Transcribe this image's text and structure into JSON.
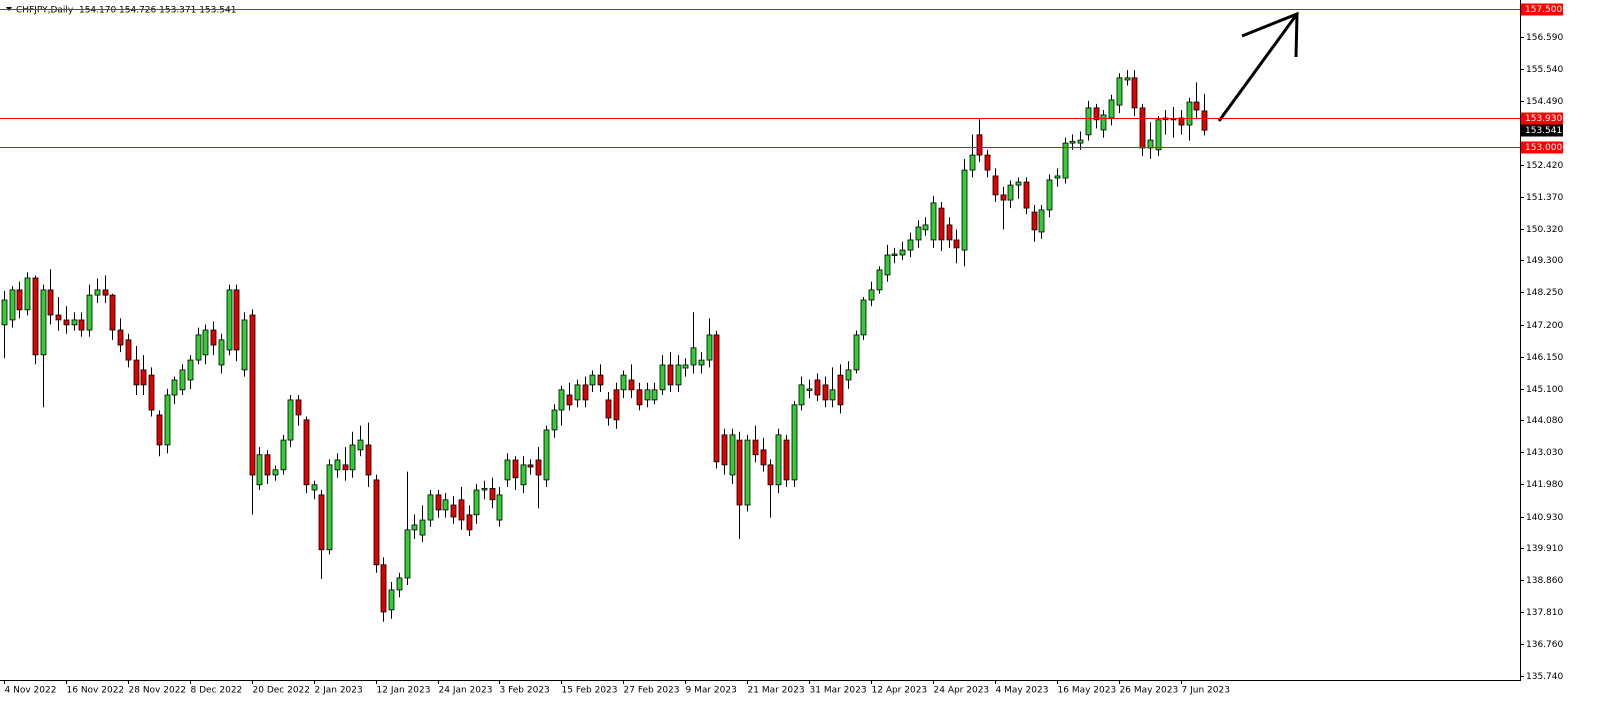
{
  "chart_data": {
    "type": "candlestick",
    "header": "CHFJPY,Daily  154.170 154.726 153.371 153.541",
    "x": [
      "4 Nov 2022",
      null,
      null,
      null,
      null,
      null,
      null,
      null,
      "16 Nov 2022",
      null,
      null,
      null,
      null,
      null,
      null,
      null,
      "28 Nov 2022",
      null,
      null,
      null,
      null,
      null,
      null,
      null,
      "8 Dec 2022",
      null,
      null,
      null,
      null,
      null,
      null,
      null,
      "20 Dec 2022",
      null,
      null,
      null,
      null,
      null,
      null,
      null,
      "2 Jan 2023",
      null,
      null,
      null,
      null,
      null,
      null,
      null,
      "12 Jan 2023",
      null,
      null,
      null,
      null,
      null,
      null,
      null,
      "24 Jan 2023",
      null,
      null,
      null,
      null,
      null,
      null,
      null,
      "3 Feb 2023",
      null,
      null,
      null,
      null,
      null,
      null,
      null,
      "15 Feb 2023",
      null,
      null,
      null,
      null,
      null,
      null,
      null,
      "27 Feb 2023",
      null,
      null,
      null,
      null,
      null,
      null,
      null,
      "9 Mar 2023",
      null,
      null,
      null,
      null,
      null,
      null,
      null,
      "21 Mar 2023",
      null,
      null,
      null,
      null,
      null,
      null,
      null,
      "31 Mar 2023",
      null,
      null,
      null,
      null,
      null,
      null,
      null,
      "12 Apr 2023",
      null,
      null,
      null,
      null,
      null,
      null,
      null,
      "24 Apr 2023",
      null,
      null,
      null,
      null,
      null,
      null,
      null,
      "4 May 2023",
      null,
      null,
      null,
      null,
      null,
      null,
      null,
      "16 May 2023",
      null,
      null,
      null,
      null,
      null,
      null,
      null,
      "26 May 2023",
      null,
      null,
      null,
      null,
      null,
      null,
      null,
      "7 Jun 2023",
      null,
      null,
      null
    ],
    "ohlc": [
      [
        147.19,
        148.3,
        146.1,
        148.0
      ],
      [
        147.35,
        148.45,
        147.1,
        148.33
      ],
      [
        148.33,
        148.6,
        147.4,
        147.68
      ],
      [
        147.68,
        148.9,
        147.5,
        148.72
      ],
      [
        148.72,
        148.8,
        145.9,
        146.21
      ],
      [
        146.21,
        148.5,
        144.5,
        148.33
      ],
      [
        148.33,
        149.0,
        147.2,
        147.51
      ],
      [
        147.51,
        148.1,
        147.0,
        147.35
      ],
      [
        147.35,
        147.8,
        146.9,
        147.19
      ],
      [
        147.19,
        147.6,
        147.0,
        147.35
      ],
      [
        147.35,
        147.6,
        146.8,
        147.02
      ],
      [
        147.02,
        148.5,
        146.8,
        148.16
      ],
      [
        148.16,
        148.7,
        147.9,
        148.33
      ],
      [
        148.33,
        148.8,
        147.9,
        148.16
      ],
      [
        148.16,
        148.2,
        146.7,
        147.02
      ],
      [
        147.02,
        147.4,
        146.3,
        146.53
      ],
      [
        146.7,
        146.9,
        145.8,
        146.04
      ],
      [
        146.04,
        146.5,
        144.9,
        145.23
      ],
      [
        145.72,
        146.2,
        144.9,
        145.23
      ],
      [
        145.55,
        145.8,
        144.2,
        144.41
      ],
      [
        144.25,
        144.4,
        142.9,
        143.27
      ],
      [
        143.27,
        145.1,
        143.0,
        144.9
      ],
      [
        144.9,
        145.5,
        144.6,
        145.39
      ],
      [
        145.07,
        145.9,
        144.9,
        145.72
      ],
      [
        145.39,
        146.2,
        145.1,
        146.04
      ],
      [
        146.04,
        147.1,
        145.9,
        146.86
      ],
      [
        146.21,
        147.2,
        145.9,
        147.02
      ],
      [
        147.02,
        147.3,
        146.2,
        146.53
      ],
      [
        145.88,
        146.9,
        145.6,
        146.7
      ],
      [
        146.37,
        148.5,
        146.2,
        148.33
      ],
      [
        148.33,
        148.5,
        146.0,
        146.37
      ],
      [
        145.72,
        147.6,
        145.5,
        147.35
      ],
      [
        147.51,
        147.7,
        141.0,
        142.29
      ],
      [
        141.97,
        143.2,
        141.8,
        142.95
      ],
      [
        142.95,
        143.1,
        142.0,
        142.29
      ],
      [
        142.29,
        142.6,
        142.1,
        142.46
      ],
      [
        142.46,
        143.6,
        142.3,
        143.43
      ],
      [
        143.43,
        144.9,
        143.2,
        144.74
      ],
      [
        144.74,
        144.9,
        143.9,
        144.25
      ],
      [
        144.09,
        144.2,
        141.7,
        141.97
      ],
      [
        141.8,
        142.1,
        141.5,
        141.97
      ],
      [
        141.64,
        141.8,
        138.9,
        139.85
      ],
      [
        139.85,
        142.8,
        139.7,
        142.62
      ],
      [
        142.46,
        143.0,
        142.2,
        142.78
      ],
      [
        142.62,
        143.2,
        142.1,
        142.46
      ],
      [
        142.46,
        143.7,
        142.2,
        143.27
      ],
      [
        143.11,
        143.9,
        142.9,
        143.43
      ],
      [
        143.27,
        144.0,
        141.9,
        142.29
      ],
      [
        142.13,
        142.3,
        139.1,
        139.36
      ],
      [
        139.36,
        139.6,
        137.5,
        137.82
      ],
      [
        137.89,
        138.8,
        137.6,
        138.54
      ],
      [
        138.54,
        139.1,
        138.3,
        138.93
      ],
      [
        138.93,
        142.4,
        138.7,
        140.5
      ],
      [
        140.5,
        141.0,
        140.2,
        140.66
      ],
      [
        140.33,
        141.3,
        140.1,
        140.82
      ],
      [
        140.82,
        141.8,
        140.6,
        141.64
      ],
      [
        141.64,
        141.8,
        140.9,
        141.15
      ],
      [
        141.15,
        141.7,
        140.9,
        141.48
      ],
      [
        141.31,
        141.6,
        140.7,
        140.92
      ],
      [
        141.48,
        141.9,
        140.5,
        140.82
      ],
      [
        140.99,
        141.3,
        140.3,
        140.5
      ],
      [
        140.99,
        142.0,
        140.7,
        141.8
      ],
      [
        141.8,
        142.1,
        141.5,
        141.85
      ],
      [
        141.85,
        142.2,
        141.2,
        141.48
      ],
      [
        140.82,
        141.9,
        140.6,
        141.64
      ],
      [
        142.13,
        143.0,
        141.9,
        142.78
      ],
      [
        142.78,
        142.9,
        141.8,
        142.2
      ],
      [
        141.97,
        142.9,
        141.7,
        142.62
      ],
      [
        142.62,
        142.8,
        142.3,
        142.55
      ],
      [
        142.78,
        143.2,
        141.2,
        142.29
      ],
      [
        142.13,
        143.9,
        141.9,
        143.76
      ],
      [
        143.76,
        144.6,
        143.5,
        144.41
      ],
      [
        144.41,
        145.2,
        143.9,
        145.07
      ],
      [
        144.9,
        145.3,
        144.4,
        144.58
      ],
      [
        144.74,
        145.4,
        144.5,
        145.23
      ],
      [
        145.23,
        145.5,
        144.5,
        144.74
      ],
      [
        145.23,
        145.7,
        145.0,
        145.55
      ],
      [
        145.55,
        145.9,
        145.0,
        145.23
      ],
      [
        144.74,
        145.0,
        143.9,
        144.15
      ],
      [
        145.07,
        145.3,
        143.8,
        144.09
      ],
      [
        145.07,
        145.7,
        144.8,
        145.55
      ],
      [
        145.39,
        145.9,
        144.8,
        145.07
      ],
      [
        145.07,
        145.3,
        144.4,
        144.58
      ],
      [
        144.74,
        145.3,
        144.5,
        145.07
      ],
      [
        144.74,
        145.3,
        144.6,
        145.07
      ],
      [
        145.07,
        146.2,
        144.9,
        145.88
      ],
      [
        145.88,
        146.3,
        145.0,
        145.23
      ],
      [
        145.23,
        146.2,
        145.0,
        145.88
      ],
      [
        145.78,
        146.1,
        145.5,
        145.88
      ],
      [
        145.88,
        147.6,
        145.6,
        146.44
      ],
      [
        145.88,
        146.3,
        145.6,
        146.04
      ],
      [
        146.04,
        147.4,
        145.8,
        146.86
      ],
      [
        146.86,
        147.0,
        142.5,
        142.72
      ],
      [
        143.6,
        143.8,
        142.3,
        142.62
      ],
      [
        142.29,
        143.8,
        142.0,
        143.6
      ],
      [
        143.43,
        143.7,
        140.2,
        141.31
      ],
      [
        141.31,
        143.6,
        141.1,
        143.43
      ],
      [
        143.43,
        143.9,
        142.7,
        142.95
      ],
      [
        143.11,
        143.5,
        142.4,
        142.62
      ],
      [
        142.62,
        142.8,
        140.9,
        141.97
      ],
      [
        141.97,
        143.8,
        141.7,
        143.6
      ],
      [
        143.43,
        143.6,
        141.9,
        142.13
      ],
      [
        142.13,
        144.7,
        141.9,
        144.58
      ],
      [
        144.58,
        145.5,
        144.4,
        145.23
      ],
      [
        145.05,
        145.4,
        144.8,
        145.1
      ],
      [
        145.39,
        145.6,
        144.7,
        144.9
      ],
      [
        145.23,
        145.5,
        144.5,
        144.74
      ],
      [
        144.74,
        145.8,
        144.5,
        145.07
      ],
      [
        145.55,
        145.9,
        144.3,
        144.58
      ],
      [
        145.39,
        146.0,
        145.1,
        145.72
      ],
      [
        145.72,
        147.0,
        145.6,
        146.86
      ],
      [
        146.86,
        148.1,
        146.7,
        148.0
      ],
      [
        148.0,
        148.6,
        147.8,
        148.33
      ],
      [
        148.33,
        149.1,
        148.2,
        148.98
      ],
      [
        148.82,
        149.8,
        148.6,
        149.47
      ],
      [
        149.45,
        149.7,
        149.2,
        149.5
      ],
      [
        149.47,
        149.9,
        149.3,
        149.63
      ],
      [
        149.63,
        150.2,
        149.4,
        149.96
      ],
      [
        149.96,
        150.6,
        149.7,
        150.38
      ],
      [
        150.29,
        150.7,
        150.1,
        150.45
      ],
      [
        149.96,
        151.4,
        149.7,
        151.17
      ],
      [
        151.0,
        151.2,
        149.6,
        149.96
      ],
      [
        150.45,
        150.7,
        149.7,
        149.96
      ],
      [
        149.96,
        150.3,
        149.2,
        149.7
      ],
      [
        149.63,
        152.6,
        149.1,
        152.24
      ],
      [
        152.24,
        153.4,
        152.0,
        152.73
      ],
      [
        153.39,
        153.9,
        152.5,
        152.73
      ],
      [
        152.73,
        152.9,
        152.0,
        152.24
      ],
      [
        152.05,
        152.3,
        151.2,
        151.43
      ],
      [
        151.43,
        151.7,
        150.3,
        151.26
      ],
      [
        151.26,
        151.9,
        151.0,
        151.75
      ],
      [
        151.75,
        152.0,
        151.3,
        151.85
      ],
      [
        151.85,
        152.0,
        150.8,
        151.0
      ],
      [
        150.87,
        151.1,
        149.9,
        150.29
      ],
      [
        150.22,
        151.1,
        150.0,
        150.94
      ],
      [
        150.94,
        152.1,
        150.7,
        151.92
      ],
      [
        151.98,
        152.3,
        151.7,
        152.05
      ],
      [
        151.98,
        153.3,
        151.8,
        153.12
      ],
      [
        153.12,
        153.4,
        152.9,
        153.18
      ],
      [
        153.12,
        153.5,
        152.9,
        153.22
      ],
      [
        153.39,
        154.5,
        153.2,
        154.27
      ],
      [
        154.27,
        154.4,
        153.6,
        153.88
      ],
      [
        153.55,
        154.2,
        153.3,
        154.04
      ],
      [
        153.94,
        154.7,
        153.7,
        154.53
      ],
      [
        154.36,
        155.4,
        154.1,
        155.25
      ],
      [
        155.18,
        155.5,
        155.0,
        155.25
      ],
      [
        155.25,
        155.5,
        154.0,
        154.27
      ],
      [
        154.27,
        154.4,
        152.7,
        152.96
      ],
      [
        152.96,
        153.8,
        152.6,
        153.22
      ],
      [
        152.9,
        154.0,
        152.7,
        153.88
      ],
      [
        153.94,
        154.2,
        153.4,
        153.88
      ],
      [
        153.88,
        154.3,
        153.3,
        153.91
      ],
      [
        153.94,
        154.2,
        153.4,
        153.71
      ],
      [
        153.71,
        154.6,
        153.2,
        154.46
      ],
      [
        154.46,
        155.1,
        153.9,
        154.2
      ],
      [
        154.17,
        154.726,
        153.371,
        153.541
      ]
    ],
    "up_color": "#32cd32",
    "down_color": "#e00000",
    "ylim": [
      135.6,
      157.79
    ],
    "yticks": [
      {
        "value": 156.59,
        "label": "156.590"
      },
      {
        "value": 155.54,
        "label": "155.540"
      },
      {
        "value": 154.49,
        "label": "154.490"
      },
      {
        "value": 152.42,
        "label": "152.420"
      },
      {
        "value": 151.37,
        "label": "151.370"
      },
      {
        "value": 150.32,
        "label": "150.320"
      },
      {
        "value": 149.3,
        "label": "149.300"
      },
      {
        "value": 148.25,
        "label": "148.250"
      },
      {
        "value": 147.2,
        "label": "147.200"
      },
      {
        "value": 146.15,
        "label": "146.150"
      },
      {
        "value": 145.1,
        "label": "145.100"
      },
      {
        "value": 144.08,
        "label": "144.080"
      },
      {
        "value": 143.03,
        "label": "143.030"
      },
      {
        "value": 141.98,
        "label": "141.980"
      },
      {
        "value": 140.93,
        "label": "140.930"
      },
      {
        "value": 139.91,
        "label": "139.910"
      },
      {
        "value": 138.86,
        "label": "138.860"
      },
      {
        "value": 137.81,
        "label": "137.810"
      },
      {
        "value": 136.76,
        "label": "136.760"
      },
      {
        "value": 135.74,
        "label": "135.740"
      }
    ],
    "levels": [
      {
        "value": 157.5,
        "label": "157.500"
      },
      {
        "value": 153.93,
        "label": "153.930"
      },
      {
        "value": 153.0,
        "label": "153.000"
      }
    ],
    "level_color": "#ff0000",
    "current_price": {
      "value": 153.541,
      "label": "153.541"
    }
  }
}
